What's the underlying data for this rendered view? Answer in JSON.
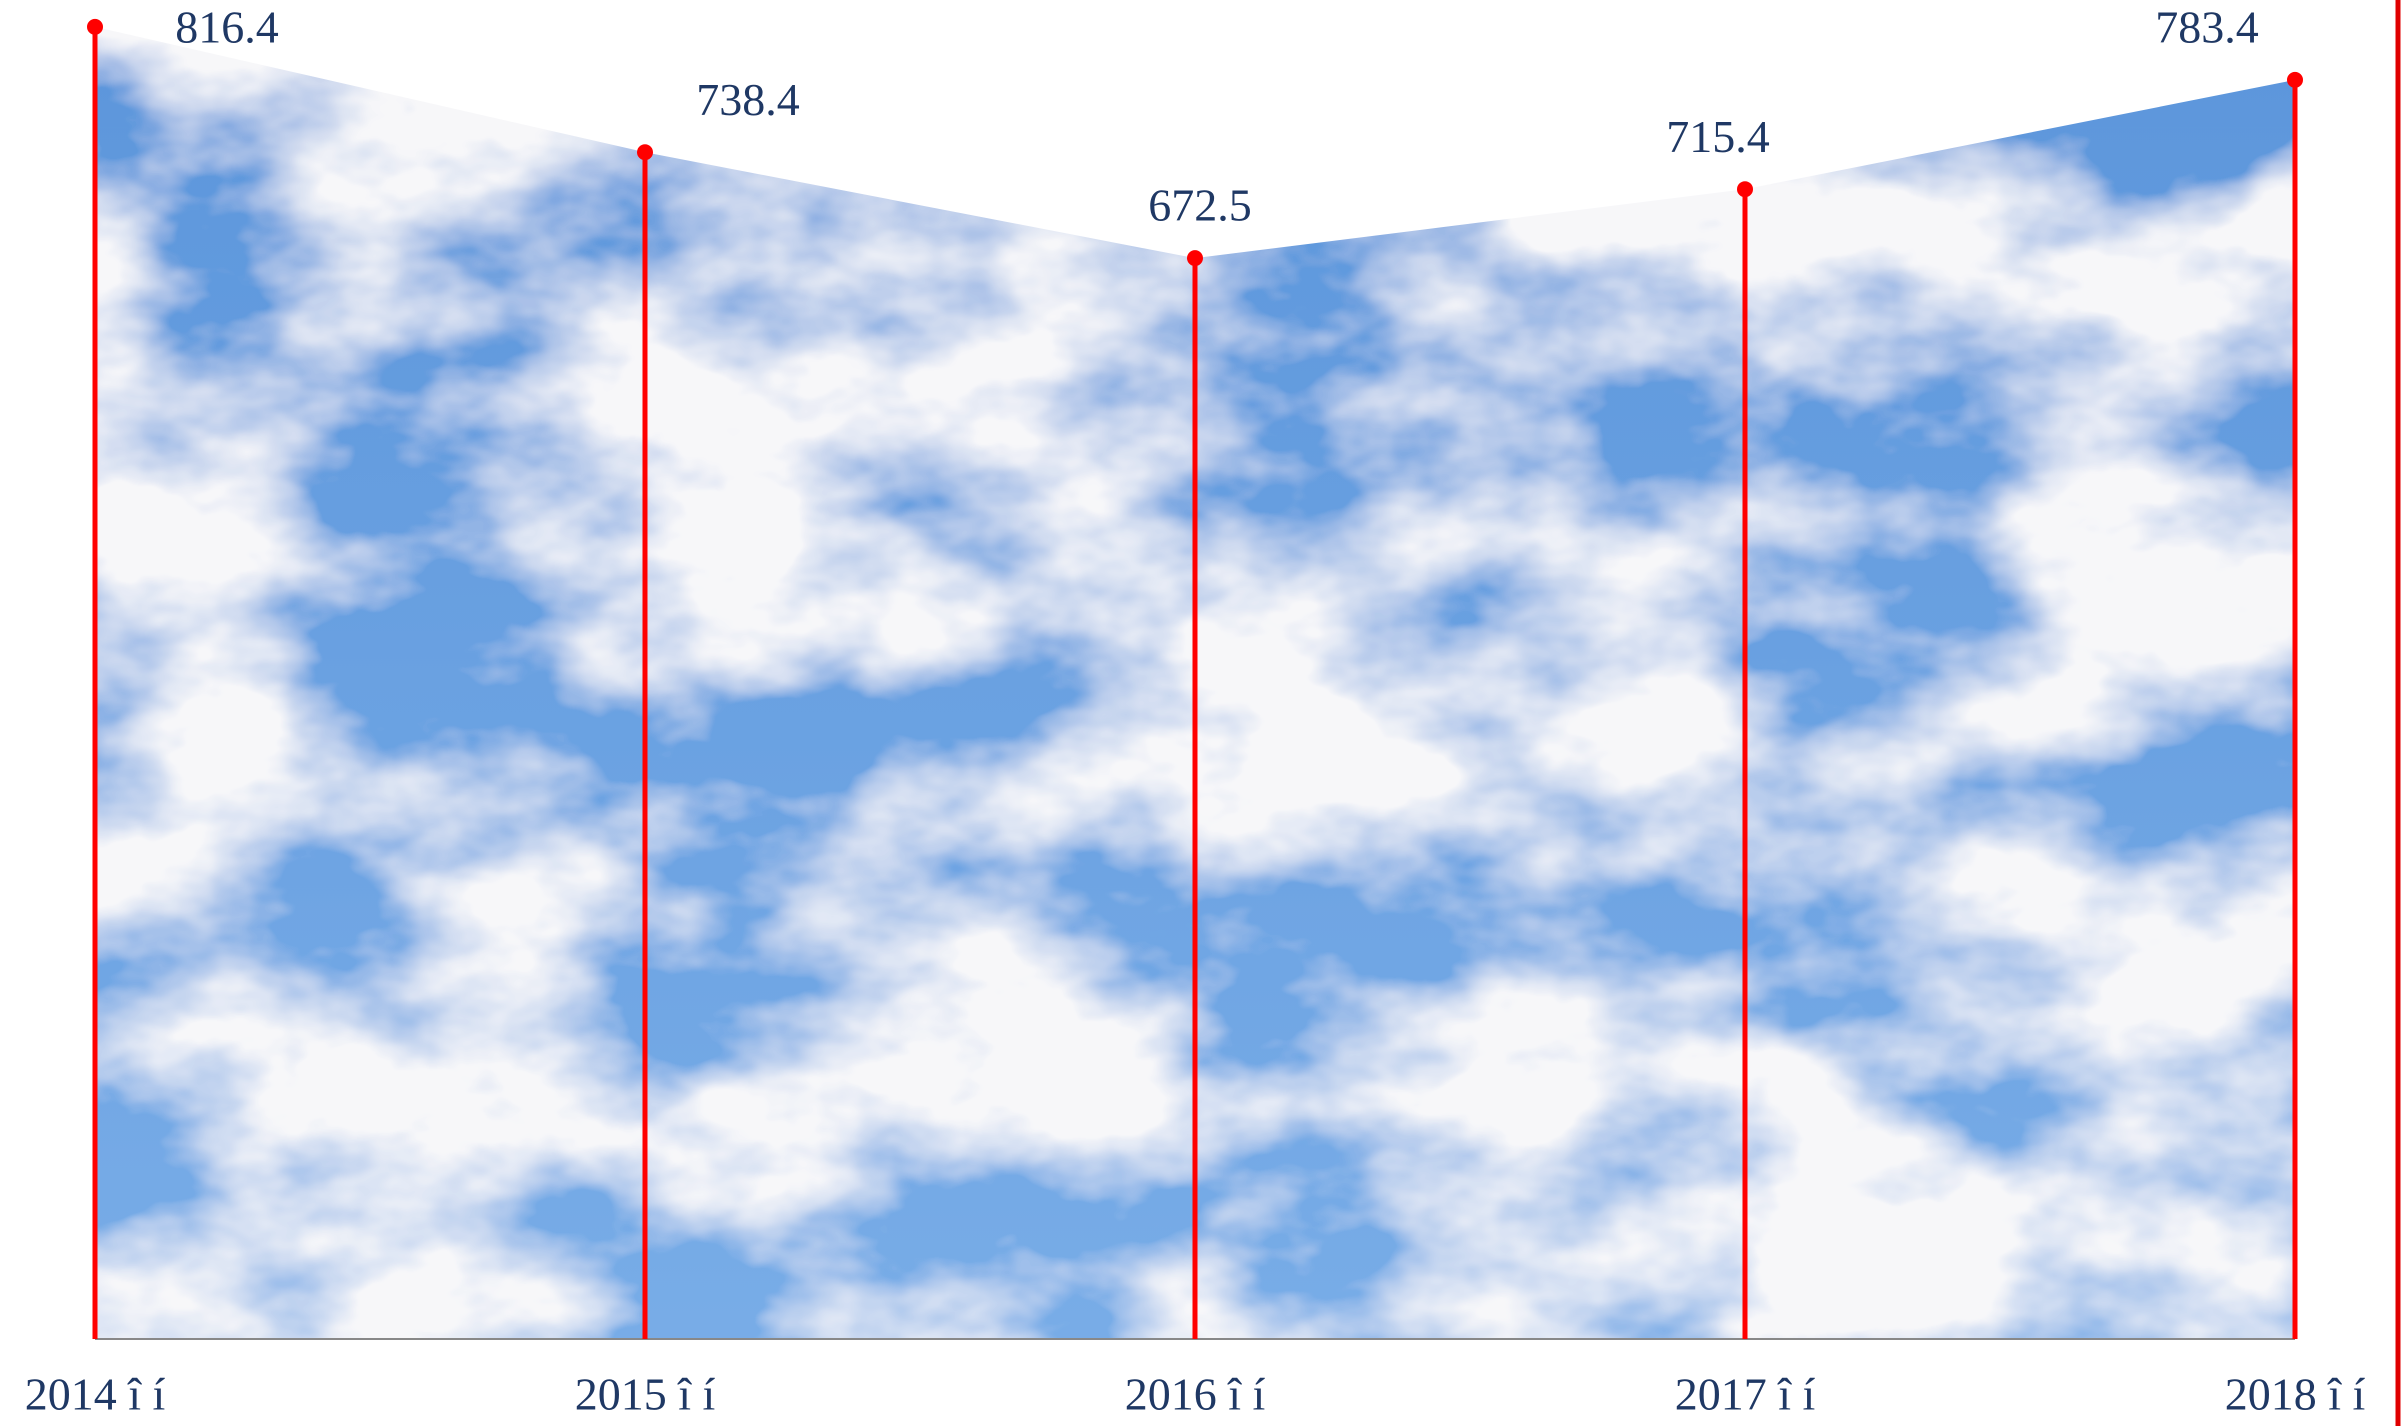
{
  "chart_data": {
    "type": "area",
    "categories": [
      "2014 î í",
      "2015 î í",
      "2016 î í",
      "2017 î í",
      "2018 î í"
    ],
    "values": [
      816.4,
      738.4,
      672.5,
      715.4,
      783.4
    ],
    "color": "#ff0000",
    "ylim": [
      0,
      830
    ]
  }
}
